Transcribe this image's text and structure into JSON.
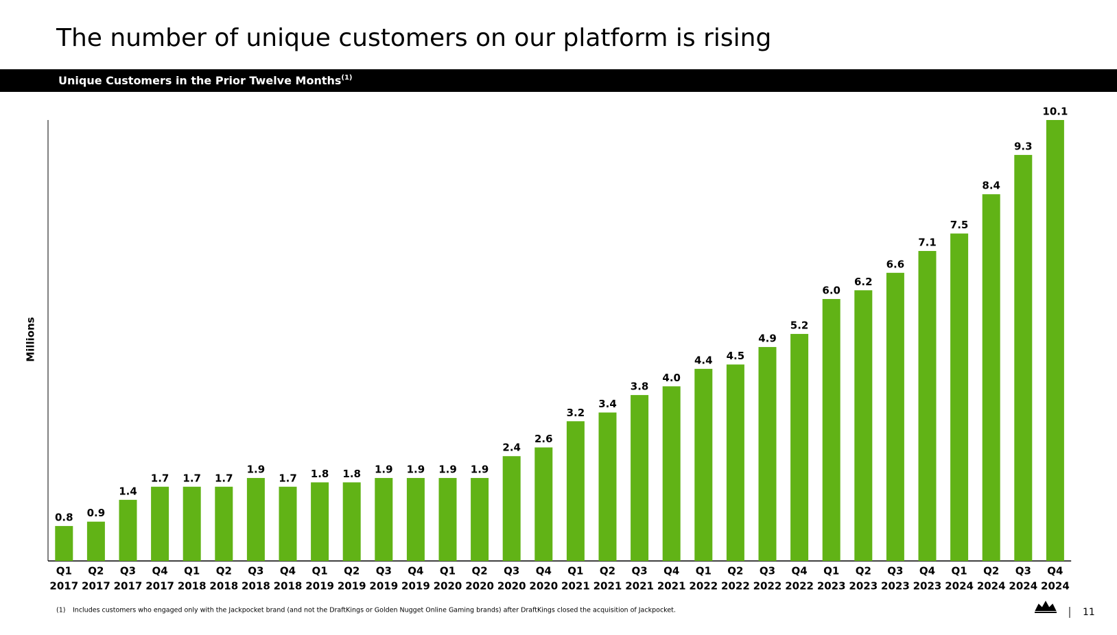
{
  "title": "The number of unique customers on our platform is rising",
  "chart_data": {
    "type": "bar",
    "title": "Unique Customers in the Prior Twelve Months",
    "title_note": "(1)",
    "y_label": "Millions",
    "categories": [
      [
        "Q1",
        "2017"
      ],
      [
        "Q2",
        "2017"
      ],
      [
        "Q3",
        "2017"
      ],
      [
        "Q4",
        "2017"
      ],
      [
        "Q1",
        "2018"
      ],
      [
        "Q2",
        "2018"
      ],
      [
        "Q3",
        "2018"
      ],
      [
        "Q4",
        "2018"
      ],
      [
        "Q1",
        "2019"
      ],
      [
        "Q2",
        "2019"
      ],
      [
        "Q3",
        "2019"
      ],
      [
        "Q4",
        "2019"
      ],
      [
        "Q1",
        "2020"
      ],
      [
        "Q2",
        "2020"
      ],
      [
        "Q3",
        "2020"
      ],
      [
        "Q4",
        "2020"
      ],
      [
        "Q1",
        "2021"
      ],
      [
        "Q2",
        "2021"
      ],
      [
        "Q3",
        "2021"
      ],
      [
        "Q4",
        "2021"
      ],
      [
        "Q1",
        "2022"
      ],
      [
        "Q2",
        "2022"
      ],
      [
        "Q3",
        "2022"
      ],
      [
        "Q4",
        "2022"
      ],
      [
        "Q1",
        "2023"
      ],
      [
        "Q2",
        "2023"
      ],
      [
        "Q3",
        "2023"
      ],
      [
        "Q4",
        "2023"
      ],
      [
        "Q1",
        "2024"
      ],
      [
        "Q2",
        "2024"
      ],
      [
        "Q3",
        "2024"
      ],
      [
        "Q4",
        "2024"
      ]
    ],
    "values": [
      0.8,
      0.9,
      1.4,
      1.7,
      1.7,
      1.7,
      1.9,
      1.7,
      1.8,
      1.8,
      1.9,
      1.9,
      1.9,
      1.9,
      2.4,
      2.6,
      3.2,
      3.4,
      3.8,
      4.0,
      4.4,
      4.5,
      4.9,
      5.2,
      6.0,
      6.2,
      6.6,
      7.1,
      7.5,
      8.4,
      9.3,
      10.1
    ],
    "value_labels": [
      "0.8",
      "0.9",
      "1.4",
      "1.7",
      "1.7",
      "1.7",
      "1.9",
      "1.7",
      "1.8",
      "1.8",
      "1.9",
      "1.9",
      "1.9",
      "1.9",
      "2.4",
      "2.6",
      "3.2",
      "3.4",
      "3.8",
      "4.0",
      "4.4",
      "4.5",
      "4.9",
      "5.2",
      "6.0",
      "6.2",
      "6.6",
      "7.1",
      "7.5",
      "8.4",
      "9.3",
      "10.1"
    ],
    "color": "#61b316",
    "ylim": [
      0,
      10.1
    ]
  },
  "footnote_marker": "(1)",
  "footnote": "Includes customers who engaged only with the Jackpocket brand (and not the DraftKings or Golden Nugget Online Gaming brands) after DraftKings closed the acquisition of Jackpocket.",
  "page_number": "11"
}
